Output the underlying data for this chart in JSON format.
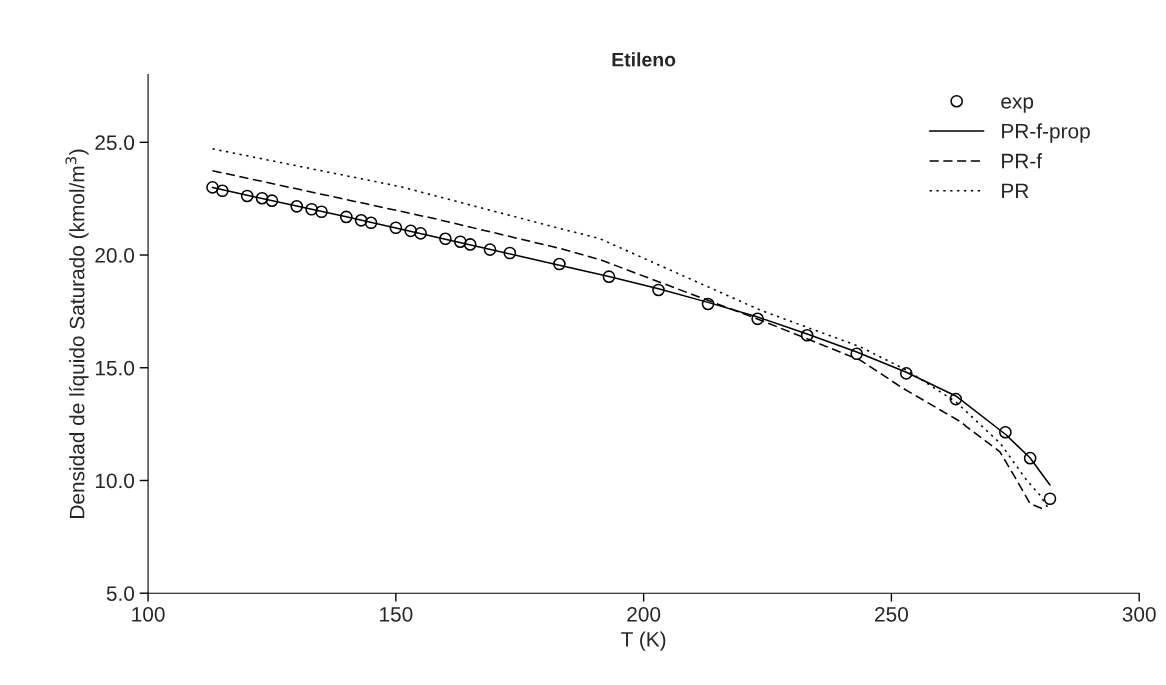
{
  "chart_data": {
    "type": "line",
    "title": "Etileno",
    "xlabel": "T (K)",
    "ylabel": "Densidad de líquido Saturado (kmol/m$^{3}$)",
    "xlim": [
      100,
      300
    ],
    "xticks": [
      100,
      150,
      200,
      250,
      300
    ],
    "ylim": [
      5,
      28
    ],
    "yticks": [
      {
        "value": 5,
        "label": "5.0"
      },
      {
        "value": 10,
        "label": "10.0"
      },
      {
        "value": 15,
        "label": "15.0"
      },
      {
        "value": 20,
        "label": "20.0"
      },
      {
        "value": 25,
        "label": "25.0"
      }
    ],
    "grid": false,
    "legend": "top right",
    "series": [
      {
        "name": "exp",
        "type": "scatter",
        "marker": "circle",
        "color": "#000000",
        "x": [
          113,
          115,
          120,
          123,
          125,
          130,
          133,
          135,
          140,
          143,
          145,
          150,
          153,
          155,
          160,
          163,
          165,
          169,
          173,
          183,
          193,
          203,
          213,
          223,
          233,
          243,
          253,
          263,
          273,
          278,
          282
        ],
        "values": [
          23.0,
          22.85,
          22.62,
          22.52,
          22.41,
          22.16,
          22.03,
          21.92,
          21.69,
          21.54,
          21.43,
          21.21,
          21.07,
          20.96,
          20.72,
          20.59,
          20.47,
          20.24,
          20.09,
          19.6,
          19.04,
          18.45,
          17.83,
          17.17,
          16.44,
          15.62,
          14.75,
          13.61,
          12.14,
          10.99,
          9.19
        ]
      },
      {
        "name": "PR-f-prop",
        "line_style": "solid",
        "color": "#000000",
        "x": [
          113,
          120,
          130,
          140,
          150,
          160,
          170,
          183,
          193,
          203,
          213,
          223,
          233,
          243,
          253,
          263,
          273,
          278,
          282
        ],
        "values": [
          23.0,
          22.65,
          22.18,
          21.7,
          21.2,
          20.7,
          20.2,
          19.55,
          19.05,
          18.5,
          17.9,
          17.25,
          16.5,
          15.7,
          14.8,
          13.75,
          12.05,
          11.0,
          9.8
        ]
      },
      {
        "name": "PR-f",
        "line_style": "dashed",
        "color": "#000000",
        "x": [
          113,
          157.5,
          183,
          191,
          223.5,
          243.7,
          252.4,
          264,
          265.2,
          271.9,
          275.3,
          278,
          280.4
        ],
        "values": [
          23.74,
          21.63,
          20.3,
          19.81,
          17.12,
          15.34,
          14.08,
          12.6,
          12.38,
          11.27,
          10.01,
          8.97,
          8.75
        ]
      },
      {
        "name": "PR",
        "line_style": "dotted",
        "color": "#000000",
        "x": [
          113,
          151,
          183,
          191,
          223.5,
          243.7,
          253,
          263,
          272,
          277.3,
          280,
          281.7
        ],
        "values": [
          24.71,
          23.03,
          21.18,
          20.74,
          17.56,
          15.93,
          14.9,
          13.49,
          11.64,
          10.01,
          9.34,
          8.75
        ]
      }
    ]
  }
}
